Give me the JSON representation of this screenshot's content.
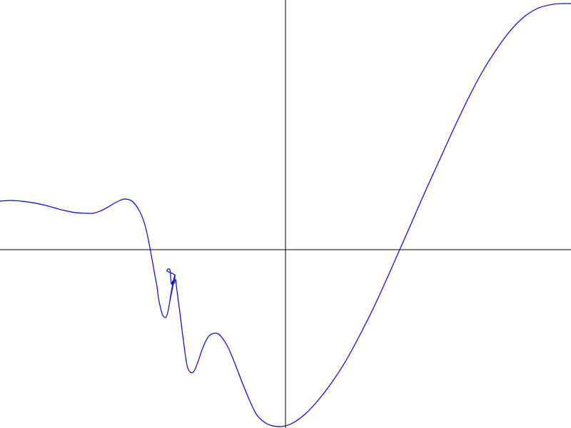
{
  "chart_data": {
    "type": "line",
    "xlim": [
      -400,
      400
    ],
    "ylim": [
      -250,
      350
    ],
    "axes": {
      "x_axis_at_y": 0,
      "y_axis_at_x": 0
    },
    "grid": false,
    "series": [
      {
        "color": "#0000ff",
        "points": [
          [
            -400,
            68
          ],
          [
            -385,
            69
          ],
          [
            -370,
            68
          ],
          [
            -355,
            66
          ],
          [
            -340,
            63
          ],
          [
            -325,
            59
          ],
          [
            -310,
            55
          ],
          [
            -295,
            52
          ],
          [
            -280,
            51
          ],
          [
            -270,
            51
          ],
          [
            -260,
            54
          ],
          [
            -250,
            59
          ],
          [
            -240,
            65
          ],
          [
            -232,
            69
          ],
          [
            -225,
            71
          ],
          [
            -215,
            68
          ],
          [
            -205,
            55
          ],
          [
            -198,
            38
          ],
          [
            -193,
            18
          ],
          [
            -188,
            -8
          ],
          [
            -183,
            -36
          ],
          [
            -180,
            -52
          ],
          [
            -178,
            -68
          ],
          [
            -175,
            -82
          ],
          [
            -172,
            -92
          ],
          [
            -168,
            -95
          ],
          [
            -165,
            -88
          ],
          [
            -162,
            -72
          ],
          [
            -158,
            -48
          ],
          [
            -155,
            -36
          ],
          [
            -162,
            -72
          ],
          [
            -158,
            -48
          ],
          [
            -155,
            -36
          ],
          [
            -166,
            -30
          ],
          [
            -162,
            -28
          ],
          [
            -160,
            -48
          ],
          [
            -158,
            -44
          ],
          [
            -156,
            -47
          ],
          [
            -154,
            -42
          ],
          [
            -152,
            -58
          ],
          [
            -148,
            -88
          ],
          [
            -143,
            -128
          ],
          [
            -138,
            -162
          ],
          [
            -133,
            -172
          ],
          [
            -128,
            -170
          ],
          [
            -123,
            -158
          ],
          [
            -116,
            -138
          ],
          [
            -108,
            -122
          ],
          [
            -98,
            -117
          ],
          [
            -90,
            -122
          ],
          [
            -80,
            -138
          ],
          [
            -70,
            -162
          ],
          [
            -60,
            -188
          ],
          [
            -50,
            -212
          ],
          [
            -40,
            -232
          ],
          [
            -28,
            -243
          ],
          [
            -18,
            -247
          ],
          [
            -8,
            -248
          ],
          [
            0,
            -247
          ],
          [
            12,
            -242
          ],
          [
            28,
            -230
          ],
          [
            45,
            -212
          ],
          [
            65,
            -186
          ],
          [
            85,
            -155
          ],
          [
            105,
            -118
          ],
          [
            125,
            -78
          ],
          [
            145,
            -34
          ],
          [
            160,
            0
          ],
          [
            175,
            34
          ],
          [
            195,
            80
          ],
          [
            215,
            124
          ],
          [
            235,
            168
          ],
          [
            255,
            210
          ],
          [
            275,
            248
          ],
          [
            295,
            280
          ],
          [
            315,
            307
          ],
          [
            335,
            327
          ],
          [
            355,
            339
          ],
          [
            375,
            344
          ],
          [
            390,
            345
          ],
          [
            400,
            345
          ]
        ]
      }
    ]
  }
}
